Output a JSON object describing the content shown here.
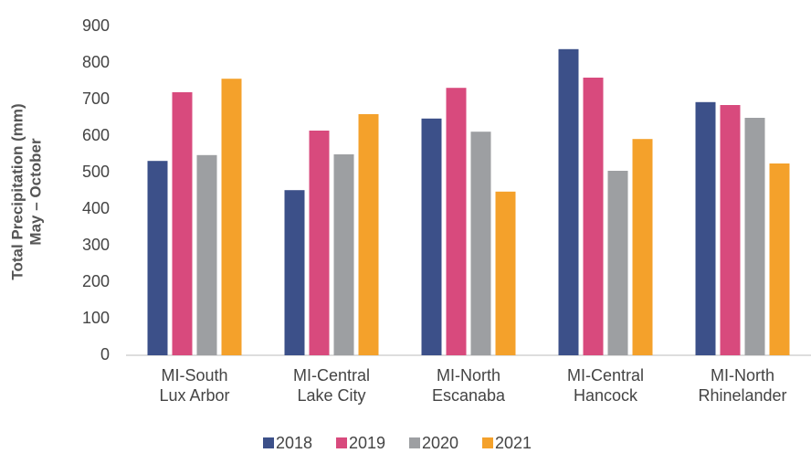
{
  "chart_data": {
    "type": "bar",
    "ylabel": [
      "Total Precipitation (mm)",
      "May – October"
    ],
    "categories": [
      [
        "MI-South",
        "Lux Arbor"
      ],
      [
        "MI-Central",
        "Lake City"
      ],
      [
        "MI-North",
        "Escanaba"
      ],
      [
        "MI-Central",
        "Hancock"
      ],
      [
        "MI-North",
        "Rhinelander"
      ]
    ],
    "series": [
      {
        "name": "2018",
        "color": "#3c5089",
        "values": [
          532,
          452,
          648,
          838,
          693
        ]
      },
      {
        "name": "2019",
        "color": "#d84a7d",
        "values": [
          720,
          615,
          732,
          760,
          685
        ]
      },
      {
        "name": "2020",
        "color": "#9d9fa2",
        "values": [
          548,
          550,
          612,
          505,
          650
        ]
      },
      {
        "name": "2021",
        "color": "#f4a12b",
        "values": [
          757,
          660,
          448,
          592,
          525
        ]
      }
    ],
    "ylim": [
      0,
      900
    ],
    "yticks": [
      0,
      100,
      200,
      300,
      400,
      500,
      600,
      700,
      800,
      900
    ],
    "grid": false,
    "legend": "bottom"
  }
}
